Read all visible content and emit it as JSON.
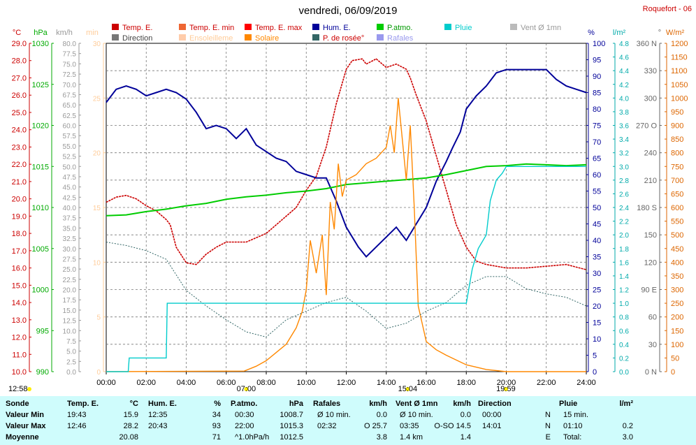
{
  "header": {
    "title": "vendredi, 06/09/2019",
    "station": "Roquefort - 06"
  },
  "legend": [
    {
      "label": "Temp. E.",
      "color": "#cc0000",
      "col": 0,
      "row": 0
    },
    {
      "label": "Direction",
      "color": "#777777",
      "col": 0,
      "row": 1
    },
    {
      "label": "Temp. E. min",
      "color": "#ee6633",
      "col": 1,
      "row": 0
    },
    {
      "label": "Ensoleilleme",
      "color": "#ffccaa",
      "col": 1,
      "row": 1
    },
    {
      "label": "Temp. E. max",
      "color": "#ff0000",
      "col": 2,
      "row": 0
    },
    {
      "label": "Solaire",
      "color": "#ff8800",
      "col": 2,
      "row": 1
    },
    {
      "label": "Hum. E.",
      "color": "#000099",
      "col": 3,
      "row": 0
    },
    {
      "label": "P. de rosée°",
      "color": "#336666",
      "col": 3,
      "row": 1
    },
    {
      "label": "P.atmo.",
      "color": "#00cc00",
      "col": 4,
      "row": 0
    },
    {
      "label": "Rafales",
      "color": "#9999ee",
      "col": 4,
      "row": 1
    },
    {
      "label": "Pluie",
      "color": "#00cccc",
      "col": 5,
      "row": 0
    },
    {
      "label": "Vent Ø 1mn",
      "color": "#bbbbbb",
      "col": 6,
      "row": 0
    }
  ],
  "axes": {
    "temp": {
      "unit": "°C",
      "color": "#cc0000",
      "ticks": [
        "29.0",
        "28.0",
        "27.0",
        "26.0",
        "25.0",
        "24.0",
        "23.0",
        "22.0",
        "21.0",
        "20.0",
        "19.0",
        "18.0",
        "17.0",
        "16.0",
        "15.0",
        "14.0",
        "13.0",
        "12.0",
        "11.0",
        "10.0"
      ]
    },
    "pressure": {
      "unit": "hPa",
      "color": "#00aa00",
      "ticks": [
        "1030",
        "1025",
        "1020",
        "1015",
        "1010",
        "1005",
        "1000",
        "995",
        "990"
      ]
    },
    "wind": {
      "unit": "km/h",
      "color": "#999999",
      "ticks": [
        "80.0",
        "77.5",
        "75.0",
        "72.5",
        "70.0",
        "67.5",
        "65.0",
        "62.5",
        "60.0",
        "57.5",
        "55.0",
        "52.5",
        "50.0",
        "47.5",
        "45.0",
        "42.5",
        "40.0",
        "37.5",
        "35.0",
        "32.5",
        "30.0",
        "27.5",
        "25.0",
        "22.5",
        "20.0",
        "17.5",
        "15.0",
        "12.5",
        "10.0",
        "7.5",
        "5.0",
        "2.5",
        "0.0"
      ]
    },
    "sunshine": {
      "unit": "min",
      "color": "#ffcc99",
      "ticks": [
        "30",
        "25",
        "20",
        "15",
        "10",
        "5",
        "0"
      ]
    },
    "humidity": {
      "unit": "%",
      "color": "#000099",
      "ticks": [
        "100",
        "95",
        "90",
        "85",
        "80",
        "75",
        "70",
        "65",
        "60",
        "55",
        "50",
        "45",
        "40",
        "35",
        "30",
        "25",
        "20",
        "15",
        "10",
        "5",
        "0"
      ]
    },
    "rain": {
      "unit": "l/m²",
      "color": "#00aaaa",
      "ticks": [
        "4.8",
        "4.6",
        "4.4",
        "4.2",
        "4.0",
        "3.8",
        "3.6",
        "3.4",
        "3.2",
        "3.0",
        "2.8",
        "2.6",
        "2.4",
        "2.2",
        "2.0",
        "1.8",
        "1.6",
        "1.4",
        "1.2",
        "1.0",
        "0.8",
        "0.6",
        "0.4",
        "0.2",
        "0.0"
      ]
    },
    "direction": {
      "unit": "°",
      "color": "#666666",
      "ticks": [
        "360 N",
        "330",
        "300",
        "270 O",
        "240",
        "210",
        "180 S",
        "150",
        "120",
        "90 E",
        "60",
        "30",
        "0 N"
      ]
    },
    "solar": {
      "unit": "W/m²",
      "color": "#dd6600",
      "ticks": [
        "1200",
        "1150",
        "1100",
        "1050",
        "1000",
        "950",
        "900",
        "850",
        "800",
        "750",
        "700",
        "650",
        "600",
        "550",
        "500",
        "450",
        "400",
        "350",
        "300",
        "250",
        "200",
        "150",
        "100",
        "50",
        "0"
      ]
    },
    "time": [
      "00:00",
      "02:00",
      "04:00",
      "06:00",
      "08:00",
      "10:00",
      "12:00",
      "14:00",
      "16:00",
      "18:00",
      "20:00",
      "22:00",
      "24:00"
    ]
  },
  "sun_markers": [
    {
      "label": "12:58",
      "hour": -0.6
    },
    {
      "label": "07:00",
      "hour": 7.0
    },
    {
      "label": "15:04",
      "hour": 15.07
    },
    {
      "label": "19:59",
      "hour": 19.98
    }
  ],
  "chart_data": {
    "type": "line",
    "x_unit": "hour",
    "xlim": [
      0,
      24
    ],
    "series": [
      {
        "name": "Temp. E.",
        "axis": "temp",
        "color": "#cc0000",
        "x": [
          0,
          0.5,
          1,
          1.5,
          2,
          2.5,
          3,
          3.2,
          3.5,
          4,
          4.5,
          5,
          5.5,
          6,
          7,
          8,
          9,
          9.5,
          10,
          10.5,
          11,
          11.5,
          12,
          12.3,
          12.8,
          13,
          13.5,
          14,
          14.5,
          15,
          15.2,
          15.5,
          16,
          16.5,
          17,
          17.5,
          18,
          18.5,
          19,
          20,
          21,
          22,
          23,
          24
        ],
        "y": [
          19.8,
          20.1,
          20.2,
          20.0,
          19.6,
          19.3,
          18.8,
          18.5,
          17.2,
          16.3,
          16.2,
          16.8,
          17.2,
          17.5,
          17.5,
          18.0,
          19.0,
          19.5,
          20.5,
          21.3,
          23.0,
          25.5,
          27.5,
          28.0,
          28.1,
          27.8,
          28.1,
          27.6,
          27.8,
          27.5,
          27.0,
          26.0,
          24.5,
          22.5,
          20.5,
          18.5,
          17.2,
          16.4,
          16.2,
          16.0,
          16.0,
          16.1,
          16.2,
          15.9
        ]
      },
      {
        "name": "Hum. E.",
        "axis": "humidity",
        "color": "#000099",
        "x": [
          0,
          0.5,
          1,
          1.5,
          2,
          2.5,
          3,
          3.5,
          4,
          4.5,
          5,
          5.5,
          6,
          6.5,
          7,
          7.5,
          8,
          8.5,
          9,
          9.5,
          10,
          10.5,
          11,
          11.5,
          12,
          12.3,
          12.6,
          13,
          13.5,
          14,
          14.5,
          15,
          15.5,
          16,
          16.5,
          17,
          17.3,
          17.7,
          18,
          18.5,
          19,
          19.5,
          20,
          21,
          22,
          22.5,
          23,
          23.5,
          24
        ],
        "y": [
          82,
          86,
          87,
          86,
          84,
          85,
          86,
          85,
          83,
          79,
          74,
          75,
          74,
          71,
          74,
          69,
          67,
          65,
          64,
          61,
          60,
          59,
          59,
          52,
          44,
          41,
          38,
          35,
          38,
          41,
          44,
          40,
          45,
          50,
          58,
          64,
          68,
          73,
          80,
          84,
          87,
          91,
          92,
          92,
          92,
          89,
          87,
          86,
          85
        ]
      },
      {
        "name": "P.atmo.",
        "axis": "pressure",
        "color": "#00cc00",
        "x": [
          0,
          1,
          2,
          3,
          4,
          5,
          6,
          7,
          8,
          9,
          10,
          11,
          12,
          13,
          14,
          15,
          16,
          17,
          18,
          19,
          20,
          21,
          22,
          23,
          24
        ],
        "y": [
          1009.0,
          1009.1,
          1009.5,
          1009.8,
          1010.2,
          1010.5,
          1011.0,
          1011.3,
          1011.5,
          1011.8,
          1012.0,
          1012.3,
          1012.8,
          1013.0,
          1013.2,
          1013.4,
          1013.6,
          1014.0,
          1014.5,
          1015.0,
          1015.1,
          1015.3,
          1015.2,
          1015.1,
          1015.2
        ]
      },
      {
        "name": "Solaire",
        "axis": "solar",
        "color": "#ff8800",
        "x": [
          0,
          6.9,
          7.5,
          8,
          8.5,
          9,
          9.5,
          9.8,
          10,
          10.2,
          10.5,
          10.8,
          11,
          11.2,
          11.4,
          11.6,
          11.8,
          12,
          12.5,
          13,
          13.5,
          14,
          14.2,
          14.4,
          14.6,
          14.8,
          15,
          15.2,
          15.4,
          15.6,
          16,
          16.5,
          17,
          18,
          19,
          20,
          24
        ],
        "y": [
          0,
          2,
          20,
          40,
          70,
          100,
          160,
          220,
          300,
          480,
          360,
          500,
          280,
          620,
          520,
          760,
          640,
          700,
          720,
          760,
          780,
          820,
          900,
          800,
          1000,
          850,
          700,
          900,
          600,
          240,
          110,
          80,
          60,
          25,
          8,
          0,
          0
        ]
      },
      {
        "name": "P. de rosée°",
        "axis": "temp",
        "color": "#336666",
        "x": [
          0,
          1,
          2,
          3,
          4,
          5,
          6,
          7,
          8,
          9,
          10,
          11,
          12,
          13,
          14,
          15,
          16,
          17,
          18,
          19,
          20,
          21,
          22,
          23,
          24
        ],
        "y": [
          17.5,
          17.3,
          17.0,
          16.5,
          14.7,
          13.8,
          13.0,
          12.3,
          12.0,
          13.0,
          13.5,
          14.0,
          14.3,
          13.5,
          12.5,
          12.8,
          13.5,
          14.0,
          15.0,
          15.5,
          15.5,
          14.8,
          14.5,
          14.3,
          13.8
        ]
      },
      {
        "name": "Pluie",
        "axis": "rain",
        "color": "#00cccc",
        "x": [
          0,
          1.1,
          1.15,
          3.0,
          3.05,
          18.0,
          18.3,
          18.6,
          19.0,
          19.2,
          19.5,
          19.8,
          20.0,
          20.3,
          24
        ],
        "y": [
          0,
          0,
          0.2,
          0.2,
          1.0,
          1.0,
          1.5,
          1.8,
          2.0,
          2.5,
          2.8,
          2.9,
          3.0,
          3.0,
          3.0
        ]
      }
    ],
    "ylim_temp": [
      10,
      29
    ],
    "ylim_humidity": [
      0,
      100
    ],
    "ylim_pressure": [
      990,
      1030
    ],
    "ylim_solar": [
      0,
      1200
    ],
    "ylim_rain": [
      0,
      4.8
    ]
  },
  "stats": {
    "header": [
      "Sonde",
      "Temp. E.",
      "°C",
      "Hum. E.",
      "%",
      "P.atmo.",
      "hPa",
      "Rafales",
      "km/h",
      "Vent Ø 1mn",
      "km/h",
      "Direction",
      "Pluie",
      "l/m²"
    ],
    "rows": [
      {
        "label": "Valeur Min",
        "cells": [
          "19:43",
          "15.9",
          "12:35",
          "34",
          "00:30",
          "1008.7",
          "Ø 10 min.",
          "0.0",
          "Ø 10 min.",
          "0.0",
          "00:00",
          "N",
          "15 min.",
          ""
        ]
      },
      {
        "label": "Valeur Max",
        "cells": [
          "12:46",
          "28.2",
          "20:43",
          "93",
          "22:00",
          "1015.3",
          "02:32",
          "O 25.7",
          "03:35",
          "O-SO 14.5",
          "14:01",
          "N",
          "01:10",
          "0.2"
        ]
      },
      {
        "label": "Moyenne",
        "cells": [
          "",
          "20.08",
          "",
          "71",
          "^1.0hPa/h",
          "1012.5",
          "",
          "3.8",
          "1.4 km",
          "1.4",
          "",
          "E",
          "Total:",
          "3.0"
        ]
      }
    ]
  }
}
